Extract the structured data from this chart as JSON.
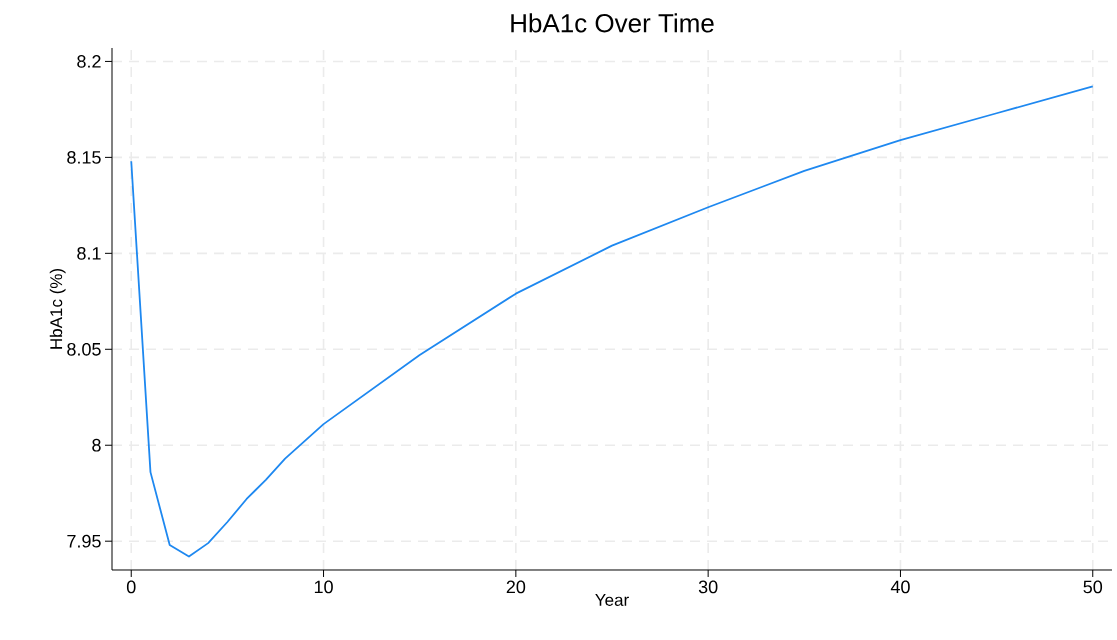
{
  "chart_data": {
    "type": "line",
    "title": "HbA1c Over Time",
    "xlabel": "Year",
    "ylabel": "HbA1c (%)",
    "x": [
      0,
      1,
      2,
      3,
      4,
      5,
      6,
      7,
      8,
      9,
      10,
      15,
      20,
      25,
      30,
      35,
      40,
      45,
      50
    ],
    "series": [
      {
        "color": "#1e88f0",
        "values": [
          8.148,
          7.986,
          7.948,
          7.942,
          7.949,
          7.96,
          7.972,
          7.982,
          7.993,
          8.002,
          8.011,
          8.047,
          8.079,
          8.104,
          8.124,
          8.143,
          8.159,
          8.173,
          8.187
        ]
      }
    ],
    "xlim": [
      -1,
      51
    ],
    "ylim": [
      7.935,
      8.207
    ],
    "xticks": [
      0,
      10,
      20,
      30,
      40,
      50
    ],
    "yticks": [
      7.95,
      8,
      8.05,
      8.1,
      8.15,
      8.2
    ],
    "grid": true,
    "marker": "none",
    "line_style": "solid"
  }
}
